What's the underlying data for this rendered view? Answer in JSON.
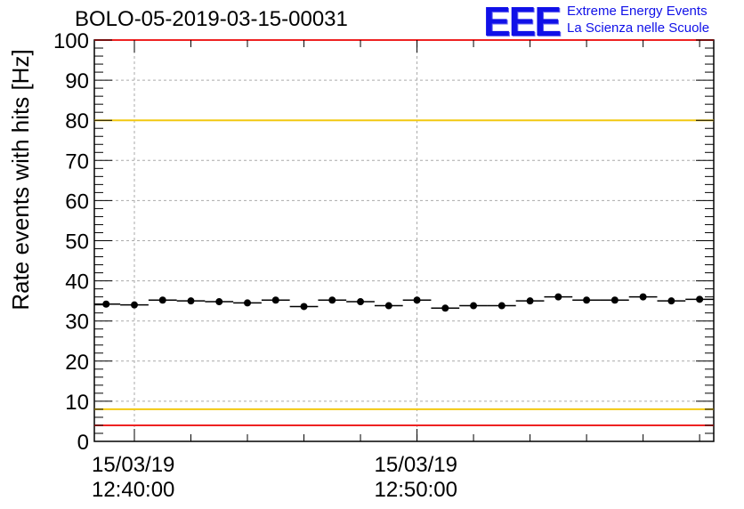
{
  "header": {
    "title": "BOLO-05-2019-03-15-00031"
  },
  "logo": {
    "mark": "EEE",
    "line1": "Extreme Energy Events",
    "line2": "La Scienza nelle Scuole",
    "color": "#1010e8"
  },
  "chart_data": {
    "type": "scatter",
    "title": "BOLO-05-2019-03-15-00031",
    "ylabel": "Rate events with hits [Hz]",
    "xlabel": "",
    "ylim": [
      0,
      100
    ],
    "y_ticks": [
      "0",
      "10",
      "20",
      "30",
      "40",
      "50",
      "60",
      "70",
      "80",
      "90",
      "100"
    ],
    "x_tick_labels": [
      {
        "date": "15/03/19",
        "time": "12:40:00"
      },
      {
        "date": "15/03/19",
        "time": "12:50:00"
      }
    ],
    "grid": true,
    "reference_lines": [
      {
        "y": 100,
        "color": "#ee2222"
      },
      {
        "y": 80,
        "color": "#f2c811"
      },
      {
        "y": 8,
        "color": "#f2c811"
      },
      {
        "y": 4,
        "color": "#ee2222"
      }
    ],
    "series": [
      {
        "x": [
          "12:39:00",
          "12:40:00",
          "12:41:00",
          "12:42:00",
          "12:43:00",
          "12:44:00",
          "12:45:00",
          "12:46:00",
          "12:47:00",
          "12:48:00",
          "12:49:00",
          "12:50:00",
          "12:51:00",
          "12:52:00",
          "12:53:00",
          "12:54:00",
          "12:55:00",
          "12:56:00",
          "12:57:00",
          "12:58:00",
          "12:59:00",
          "13:00:00"
        ],
        "values": [
          34.2,
          34.0,
          35.2,
          35.0,
          34.8,
          34.5,
          35.2,
          33.6,
          35.2,
          34.8,
          33.8,
          35.2,
          33.2,
          33.8,
          33.8,
          35.0,
          36.0,
          35.2,
          35.2,
          36.0,
          35.0,
          35.4
        ],
        "color": "#000000"
      }
    ]
  }
}
